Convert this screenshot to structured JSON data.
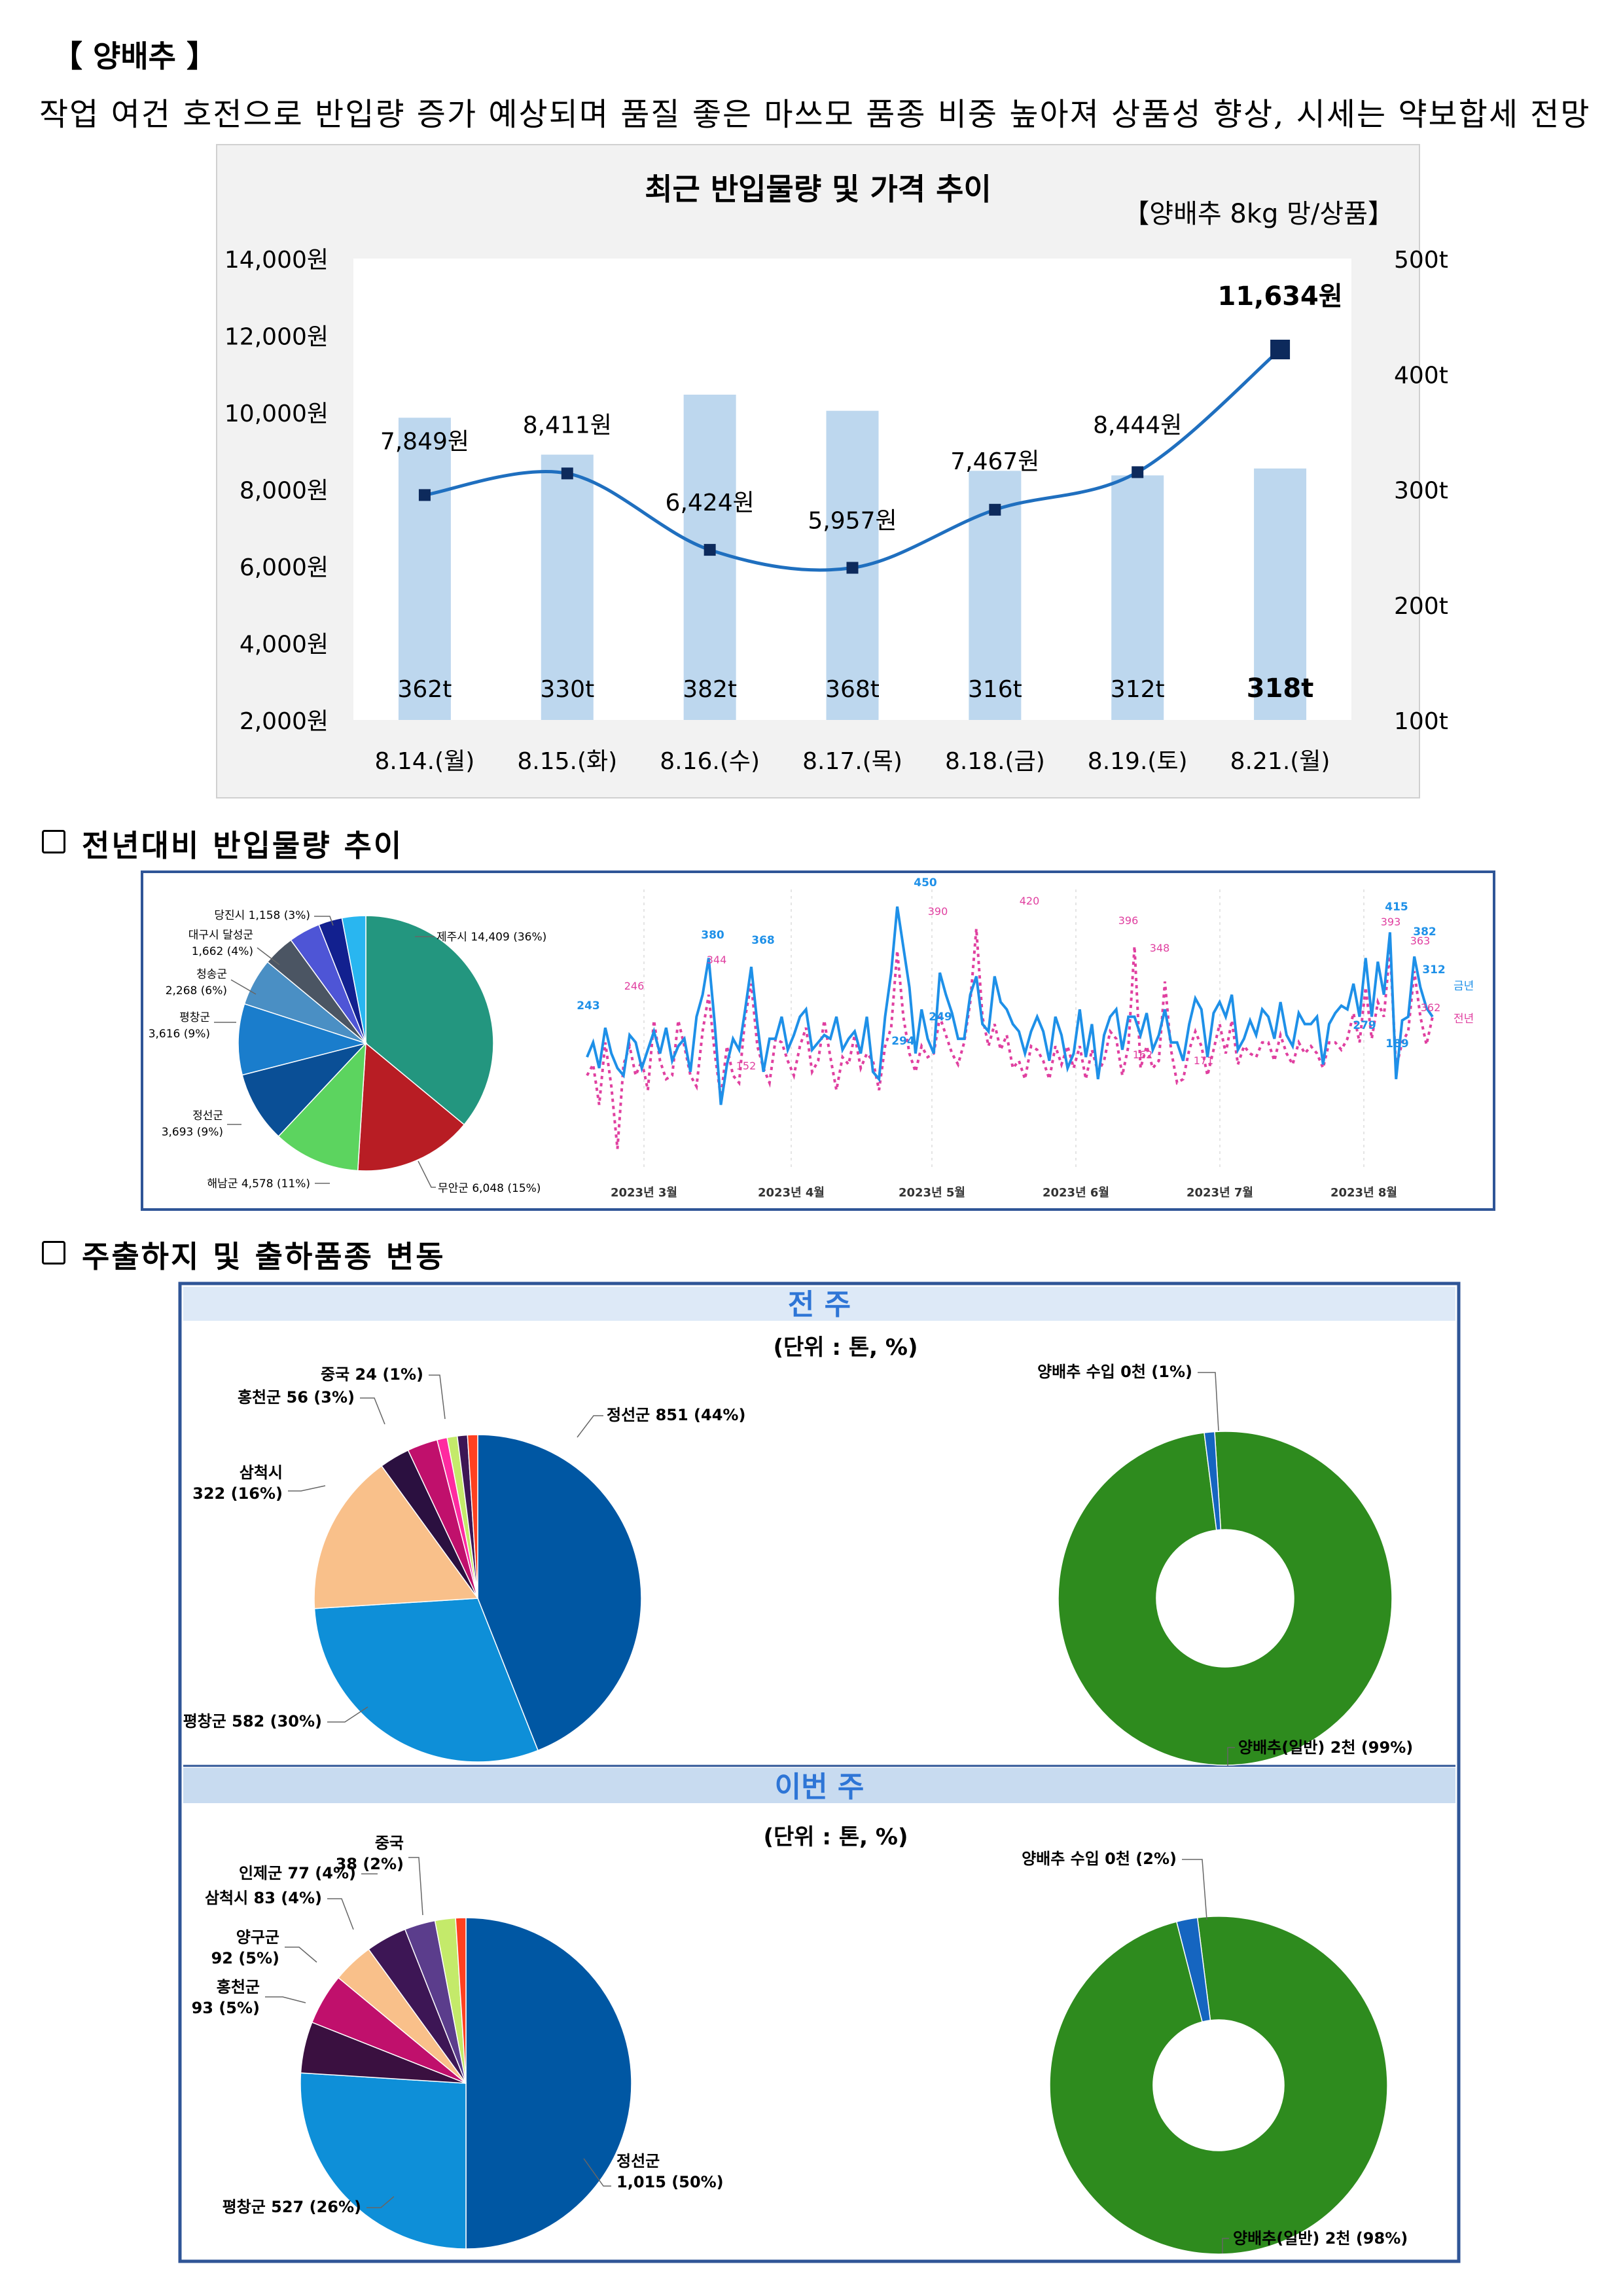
{
  "header": {
    "title": "【 양배추 】",
    "subtitle": "작업 여건 호전으로 반입량 증가 예상되며 품질 좋은 마쓰모 품종 비중 높아져 상품성 향상, 시세는 약보합세 전망"
  },
  "sections": {
    "yoy_title": "전년대비 반입물량 추이",
    "ship_title": "주출하지 및 출하품종 변동"
  },
  "colors": {
    "bar": "#bdd7ee",
    "price_line": "#1f6fbf",
    "marker": "#0d2a5c",
    "current_year": "#1e90e8",
    "previous_year": "#e040a0",
    "donut_green": "#2e8b1e",
    "donut_blue": "#1565c0",
    "frame_blue": "#2f5597",
    "band_prev": "#dde9f7",
    "band_cur": "#c8dbf0",
    "band_text": "#2e75d6"
  },
  "chart_data": [
    {
      "type": "bar",
      "id": "price-volume",
      "title": "최근 반입물량 및 가격 추이",
      "unit_note": "【양배추 8kg 망/상품】",
      "categories": [
        "8.14.(월)",
        "8.15.(화)",
        "8.16.(수)",
        "8.17.(목)",
        "8.18.(금)",
        "8.19.(토)",
        "8.21.(월)"
      ],
      "volume": [
        362,
        330,
        382,
        368,
        316,
        312,
        318
      ],
      "volume_labels": [
        "362t",
        "330t",
        "382t",
        "368t",
        "316t",
        "312t",
        "318t"
      ],
      "price": [
        7849,
        8411,
        6424,
        5957,
        7467,
        8444,
        11634
      ],
      "price_labels": [
        "7,849원",
        "8,411원",
        "6,424원",
        "5,957원",
        "7,467원",
        "8,444원",
        "11,634원"
      ],
      "y_left_range": [
        2000,
        14000
      ],
      "y_left_ticks": [
        "2,000원",
        "4,000원",
        "6,000원",
        "8,000원",
        "10,000원",
        "12,000원",
        "14,000원"
      ],
      "y_right_range": [
        100,
        500
      ],
      "y_right_ticks": [
        "100t",
        "200t",
        "300t",
        "400t",
        "500t"
      ]
    },
    {
      "type": "pie",
      "id": "origin-pie",
      "slices": [
        {
          "label": "제주시 14,409 (36%)",
          "value": 36,
          "color": "#23967f"
        },
        {
          "label": "무안군 6,048 (15%)",
          "value": 15,
          "color": "#b81d24"
        },
        {
          "label": "해남군 4,578 (11%)",
          "value": 11,
          "color": "#5cd45f"
        },
        {
          "label": "정선군 3,693 (9%)",
          "value": 9,
          "color": "#0a4f96"
        },
        {
          "label": "평창군 3,616 (9%)",
          "value": 9,
          "color": "#1a7dcc"
        },
        {
          "label": "청송군 2,268 (6%)",
          "value": 6,
          "color": "#4a8fc4"
        },
        {
          "label": "대구시 달성군 1,662 (4%)",
          "value": 4,
          "color": "#4b5563"
        },
        {
          "label": "",
          "value": 4,
          "color": "#4e55d6"
        },
        {
          "label": "당진시 1,158 (3%)",
          "value": 3,
          "color": "#12208f"
        },
        {
          "label": "",
          "value": 3,
          "color": "#29b6f0"
        }
      ]
    },
    {
      "type": "line",
      "id": "yoy-line",
      "x_ticks": [
        "2023년 3월",
        "2023년 4월",
        "2023년 5월",
        "2023년 6월",
        "2023년 7월",
        "2023년 8월"
      ],
      "ylim": [
        90,
        460
      ],
      "series": [
        {
          "name": "금년",
          "color": "#1e90e8",
          "values": [
            245,
            265,
            230,
            285,
            250,
            230,
            220,
            275,
            265,
            230,
            255,
            280,
            250,
            285,
            240,
            260,
            270,
            225,
            300,
            330,
            380,
            290,
            180,
            235,
            270,
            255,
            310,
            368,
            290,
            225,
            270,
            270,
            300,
            255,
            275,
            300,
            310,
            255,
            265,
            275,
            270,
            300,
            255,
            270,
            280,
            250,
            300,
            225,
            215,
            300,
            360,
            450,
            395,
            340,
            250,
            310,
            270,
            250,
            360,
            330,
            305,
            270,
            270,
            330,
            355,
            290,
            280,
            355,
            320,
            310,
            290,
            280,
            250,
            280,
            300,
            280,
            240,
            300,
            275,
            230,
            250,
            310,
            245,
            290,
            215,
            275,
            300,
            310,
            255,
            300,
            300,
            275,
            305,
            255,
            275,
            310,
            265,
            265,
            240,
            290,
            325,
            310,
            245,
            305,
            320,
            300,
            330,
            255,
            270,
            295,
            275,
            310,
            300,
            270,
            320,
            275,
            260,
            305,
            290,
            290,
            300,
            235,
            290,
            305,
            315,
            310,
            345,
            300,
            380,
            300,
            375,
            330,
            415,
            215,
            295,
            300,
            382,
            340,
            312,
            300
          ]
        },
        {
          "name": "전년",
          "color": "#e040a0",
          "values": [
            220,
            235,
            180,
            265,
            205,
            120,
            235,
            260,
            220,
            240,
            200,
            295,
            240,
            215,
            220,
            295,
            260,
            220,
            205,
            280,
            330,
            250,
            190,
            260,
            220,
            210,
            300,
            345,
            260,
            230,
            210,
            270,
            265,
            240,
            220,
            260,
            285,
            225,
            240,
            295,
            245,
            200,
            245,
            235,
            275,
            230,
            250,
            240,
            200,
            260,
            285,
            390,
            300,
            250,
            225,
            260,
            245,
            250,
            300,
            275,
            250,
            235,
            265,
            320,
            420,
            300,
            260,
            290,
            255,
            275,
            230,
            240,
            215,
            260,
            255,
            240,
            215,
            260,
            235,
            260,
            230,
            260,
            215,
            255,
            225,
            240,
            280,
            270,
            220,
            260,
            396,
            230,
            260,
            230,
            240,
            348,
            255,
            210,
            215,
            255,
            280,
            260,
            220,
            255,
            290,
            250,
            295,
            235,
            260,
            250,
            245,
            265,
            265,
            240,
            275,
            250,
            235,
            265,
            250,
            260,
            250,
            230,
            265,
            265,
            255,
            270,
            305,
            265,
            340,
            270,
            320,
            300,
            393,
            230,
            265,
            280,
            362,
            300,
            262,
            300
          ]
        }
      ],
      "annotations_current": [
        "243",
        "380",
        "368",
        "450",
        "249",
        "294",
        "415",
        "382",
        "312",
        "279",
        "189"
      ],
      "annotations_previous": [
        "246",
        "344",
        "152",
        "390",
        "420",
        "396",
        "348",
        "162",
        "171",
        "393",
        "363",
        "362"
      ],
      "end_labels": [
        "금년",
        "전년"
      ]
    },
    {
      "type": "pie",
      "id": "prev-week-origin",
      "slices": [
        {
          "label": "정선군 851 (44%)",
          "value": 44,
          "color": "#0057a3"
        },
        {
          "label": "평창군 582 (30%)",
          "value": 30,
          "color": "#0e8fd8"
        },
        {
          "label": "삼척시 322 (16%)",
          "value": 16,
          "color": "#f9c08a"
        },
        {
          "label": "",
          "value": 3,
          "color": "#2b1040"
        },
        {
          "label": "홍천군 56 (3%)",
          "value": 3,
          "color": "#c0106c"
        },
        {
          "label": "",
          "value": 1,
          "color": "#ff2aa0"
        },
        {
          "label": "중국 24 (1%)",
          "value": 1,
          "color": "#c4ea6a"
        },
        {
          "label": "",
          "value": 1,
          "color": "#3d1655"
        },
        {
          "label": "",
          "value": 1,
          "color": "#ff4020"
        }
      ]
    },
    {
      "type": "pie",
      "id": "prev-week-variety",
      "slices": [
        {
          "label": "양배추(일반) 2천 (99%)",
          "value": 99,
          "color": "#2e8b1e"
        },
        {
          "label": "양배추 수입 0천 (1%)",
          "value": 1,
          "color": "#1565c0"
        }
      ]
    },
    {
      "type": "pie",
      "id": "this-week-origin",
      "slices": [
        {
          "label": "정선군 1,015 (50%)",
          "value": 50,
          "color": "#0057a3"
        },
        {
          "label": "평창군 527 (26%)",
          "value": 26,
          "color": "#0e8fd8"
        },
        {
          "label": "홍천군 93 (5%)",
          "value": 5,
          "color": "#3a1040"
        },
        {
          "label": "양구군 92 (5%)",
          "value": 5,
          "color": "#c0106c"
        },
        {
          "label": "삼척시 83 (4%)",
          "value": 4,
          "color": "#f9c08a"
        },
        {
          "label": "인제군 77 (4%)",
          "value": 4,
          "color": "#3d1655"
        },
        {
          "label": "",
          "value": 3,
          "color": "#5b3d8c"
        },
        {
          "label": "중국 38 (2%)",
          "value": 2,
          "color": "#c4ea6a"
        },
        {
          "label": "",
          "value": 1,
          "color": "#ff4020"
        }
      ]
    },
    {
      "type": "pie",
      "id": "this-week-variety",
      "slices": [
        {
          "label": "양배추(일반) 2천 (98%)",
          "value": 98,
          "color": "#2e8b1e"
        },
        {
          "label": "양배추 수입 0천 (2%)",
          "value": 2,
          "color": "#1565c0"
        }
      ]
    }
  ],
  "shipping": {
    "prev_week_band": "전 주",
    "this_week_band": "이번 주",
    "unit_label": "(단위 : 톤, %)",
    "origin_label_lines_this_week": {
      "jungguk": [
        "중국",
        "38 (2%)"
      ],
      "yanggu": [
        "양구군",
        "92 (5%)"
      ],
      "hongcheon": [
        "홍천군",
        "93 (5%)"
      ],
      "jeongseon": [
        "정선군",
        "1,015 (50%)"
      ]
    },
    "origin_label_lines_prev_week": {
      "samcheok": [
        "삼척시",
        "322 (16%)"
      ]
    },
    "origin_label_lines_pie": {
      "daegu": [
        "대구시 달성군",
        "1,662 (4%)"
      ],
      "cheongsong": [
        "청송군",
        "2,268 (6%)"
      ],
      "pyeongchang": [
        "평창군",
        "3,616 (9%)"
      ],
      "jeongseon": [
        "정선군",
        "3,693 (9%)"
      ]
    }
  }
}
